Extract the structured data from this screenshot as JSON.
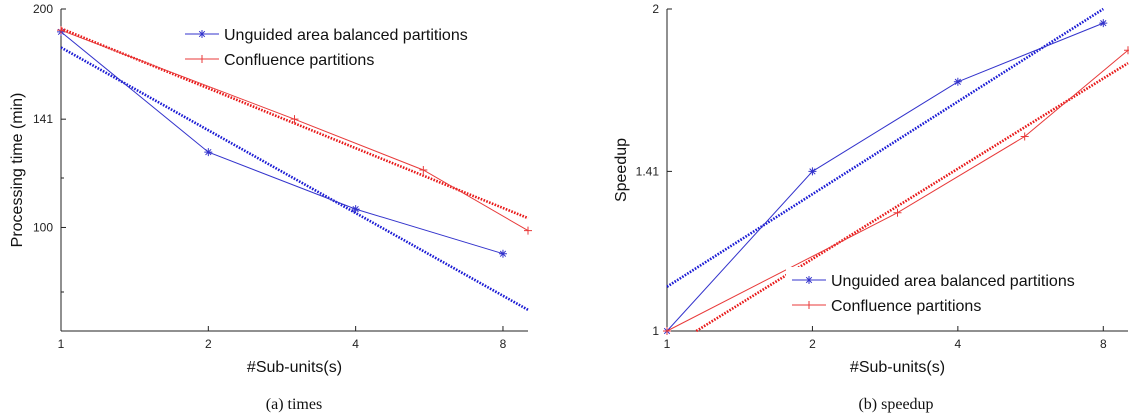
{
  "chart_data": [
    {
      "id": "times",
      "type": "line",
      "caption": "(a)  times",
      "xlabel": "#Sub-units(s)",
      "ylabel": "Processing time (min)",
      "x_scale": "log2",
      "y_scale": "log",
      "xlim": [
        1,
        9
      ],
      "ylim": [
        72,
        200
      ],
      "x_ticks": [
        1,
        2,
        4,
        8
      ],
      "y_ticks": [
        100,
        141,
        200
      ],
      "legend_position": "top-right",
      "series": [
        {
          "name": "Unguided area balanced partitions",
          "color": "#3333cc",
          "marker": "*",
          "x": [
            1,
            2,
            4,
            8
          ],
          "y": [
            186,
            127,
            106,
            92
          ]
        },
        {
          "name": "Confluence partitions",
          "color": "#e83a3a",
          "marker": "+",
          "x": [
            1,
            3,
            5.5,
            9
          ],
          "y": [
            187,
            141,
            120,
            99
          ]
        }
      ],
      "fit_lines": [
        {
          "color": "#1a1ad4",
          "x": [
            1,
            9
          ],
          "y": [
            177,
            77
          ]
        },
        {
          "color": "#e81818",
          "x": [
            1,
            9
          ],
          "y": [
            188,
            103
          ]
        }
      ]
    },
    {
      "id": "speedup",
      "type": "line",
      "caption": "(b)  speedup",
      "xlabel": "#Sub-units(s)",
      "ylabel": "Speedup",
      "x_scale": "log2",
      "y_scale": "log",
      "xlim": [
        1,
        9
      ],
      "ylim": [
        1,
        2
      ],
      "x_ticks": [
        1,
        2,
        4,
        8
      ],
      "y_ticks": [
        1,
        1.41,
        2
      ],
      "legend_position": "bottom-right",
      "series": [
        {
          "name": "Unguided area balanced partitions",
          "color": "#3333cc",
          "marker": "*",
          "x": [
            1,
            2,
            4,
            8
          ],
          "y": [
            1,
            1.41,
            1.71,
            1.94
          ]
        },
        {
          "name": "Confluence partitions",
          "color": "#e83a3a",
          "marker": "+",
          "x": [
            1,
            3,
            5.5,
            9
          ],
          "y": [
            1,
            1.29,
            1.52,
            1.83
          ]
        }
      ],
      "fit_lines": [
        {
          "color": "#1a1ad4",
          "x": [
            1,
            8
          ],
          "y": [
            1.1,
            2.0
          ]
        },
        {
          "color": "#e81818",
          "x": [
            1.15,
            9
          ],
          "y": [
            1.0,
            1.78
          ]
        }
      ]
    }
  ]
}
